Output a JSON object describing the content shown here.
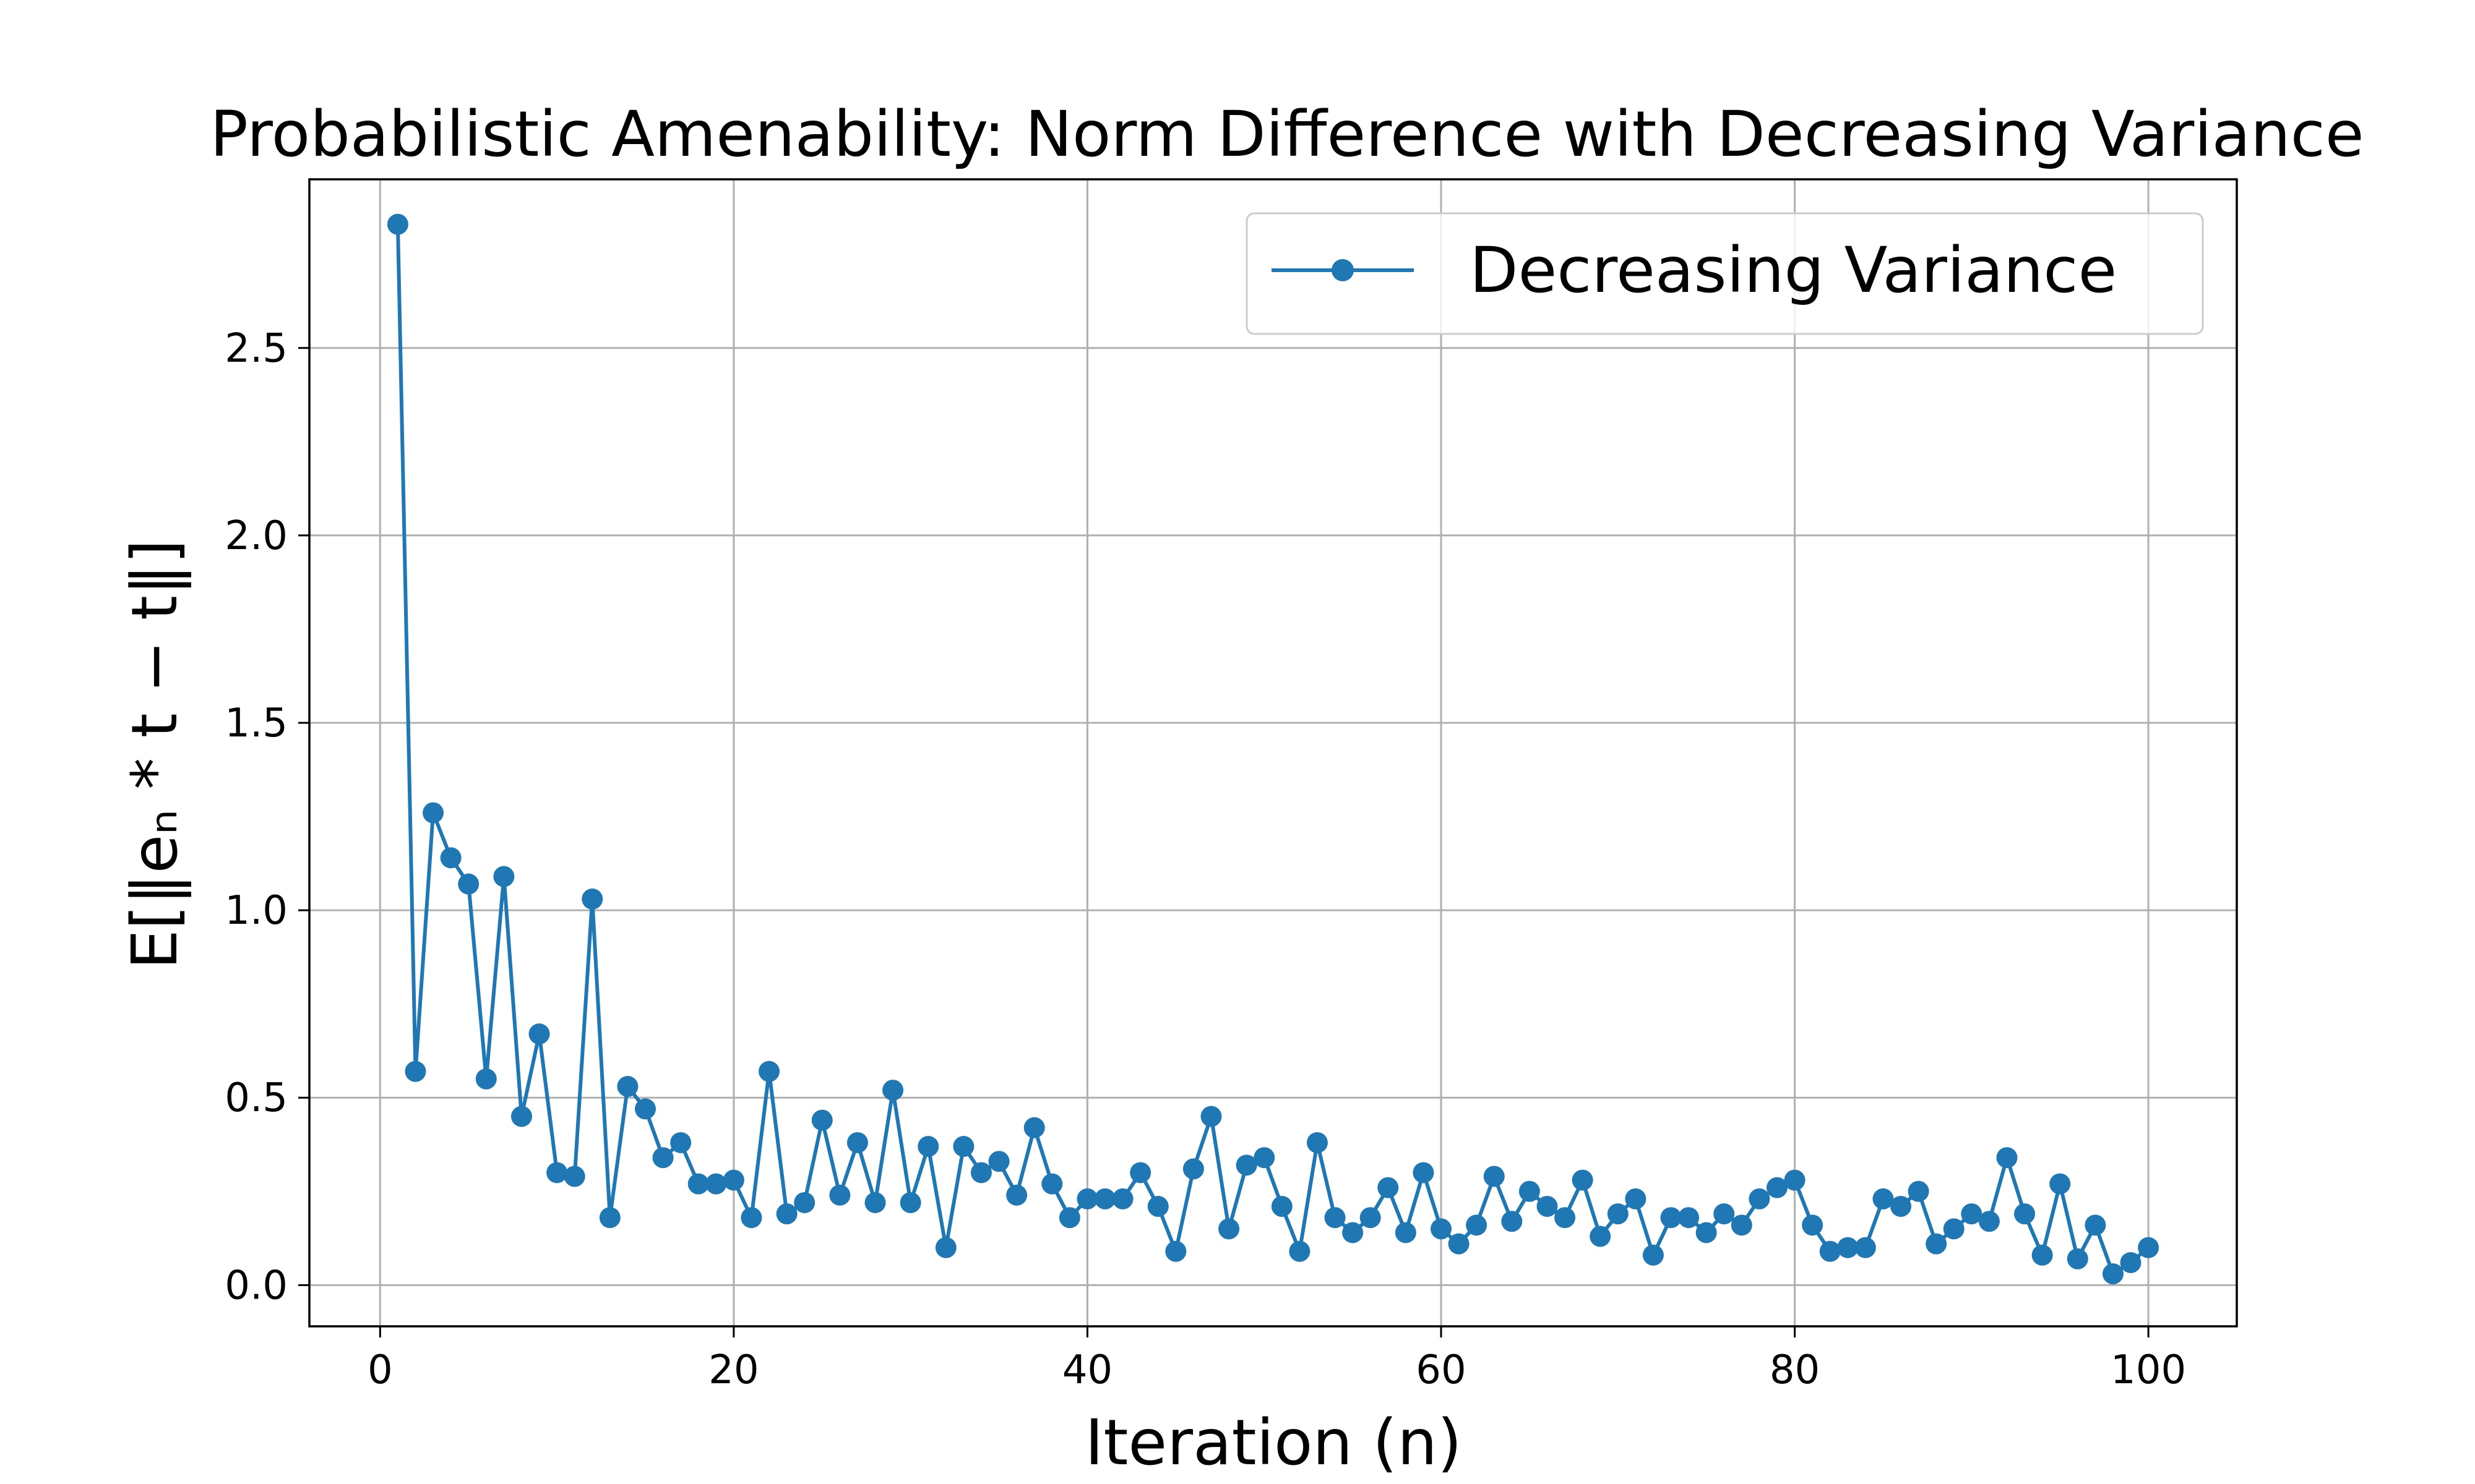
{
  "chart_data": {
    "type": "line",
    "title": "Probabilistic Amenability: Norm Difference with Decreasing Variance",
    "xlabel": "Iteration (n)",
    "ylabel": "E[‖eₙ * t − t‖]",
    "xlim": [
      -4,
      105
    ],
    "ylim": [
      -0.11,
      2.95
    ],
    "xticks": [
      0,
      20,
      40,
      60,
      80,
      100
    ],
    "xtick_labels": [
      "0",
      "20",
      "40",
      "60",
      "80",
      "100"
    ],
    "yticks": [
      0.0,
      0.5,
      1.0,
      1.5,
      2.0,
      2.5
    ],
    "ytick_labels": [
      "0.0",
      "0.5",
      "1.0",
      "1.5",
      "2.0",
      "2.5"
    ],
    "grid": true,
    "legend_position": "top-right",
    "series": [
      {
        "name": "Decreasing Variance",
        "color": "#1f77b4",
        "marker": "circle",
        "x": [
          1,
          2,
          3,
          4,
          5,
          6,
          7,
          8,
          9,
          10,
          11,
          12,
          13,
          14,
          15,
          16,
          17,
          18,
          19,
          20,
          21,
          22,
          23,
          24,
          25,
          26,
          27,
          28,
          29,
          30,
          31,
          32,
          33,
          34,
          35,
          36,
          37,
          38,
          39,
          40,
          41,
          42,
          43,
          44,
          45,
          46,
          47,
          48,
          49,
          50,
          51,
          52,
          53,
          54,
          55,
          56,
          57,
          58,
          59,
          60,
          61,
          62,
          63,
          64,
          65,
          66,
          67,
          68,
          69,
          70,
          71,
          72,
          73,
          74,
          75,
          76,
          77,
          78,
          79,
          80,
          81,
          82,
          83,
          84,
          85,
          86,
          87,
          88,
          89,
          90,
          91,
          92,
          93,
          94,
          95,
          96,
          97,
          98,
          99,
          100
        ],
        "values": [
          2.83,
          0.57,
          1.26,
          1.14,
          1.07,
          0.55,
          1.09,
          0.45,
          0.67,
          0.3,
          0.29,
          1.03,
          0.18,
          0.53,
          0.47,
          0.34,
          0.38,
          0.27,
          0.27,
          0.28,
          0.18,
          0.57,
          0.19,
          0.22,
          0.44,
          0.24,
          0.38,
          0.22,
          0.52,
          0.22,
          0.37,
          0.1,
          0.37,
          0.3,
          0.33,
          0.24,
          0.42,
          0.27,
          0.18,
          0.23,
          0.23,
          0.23,
          0.3,
          0.21,
          0.09,
          0.31,
          0.45,
          0.15,
          0.32,
          0.34,
          0.21,
          0.09,
          0.38,
          0.18,
          0.14,
          0.18,
          0.26,
          0.14,
          0.3,
          0.15,
          0.11,
          0.16,
          0.29,
          0.17,
          0.25,
          0.21,
          0.18,
          0.28,
          0.13,
          0.19,
          0.23,
          0.08,
          0.18,
          0.18,
          0.14,
          0.19,
          0.16,
          0.23,
          0.26,
          0.28,
          0.16,
          0.09,
          0.1,
          0.1,
          0.23,
          0.21,
          0.25,
          0.11,
          0.15,
          0.19,
          0.17,
          0.34,
          0.19,
          0.08,
          0.27,
          0.07,
          0.16,
          0.03,
          0.06,
          0.1
        ]
      }
    ]
  }
}
